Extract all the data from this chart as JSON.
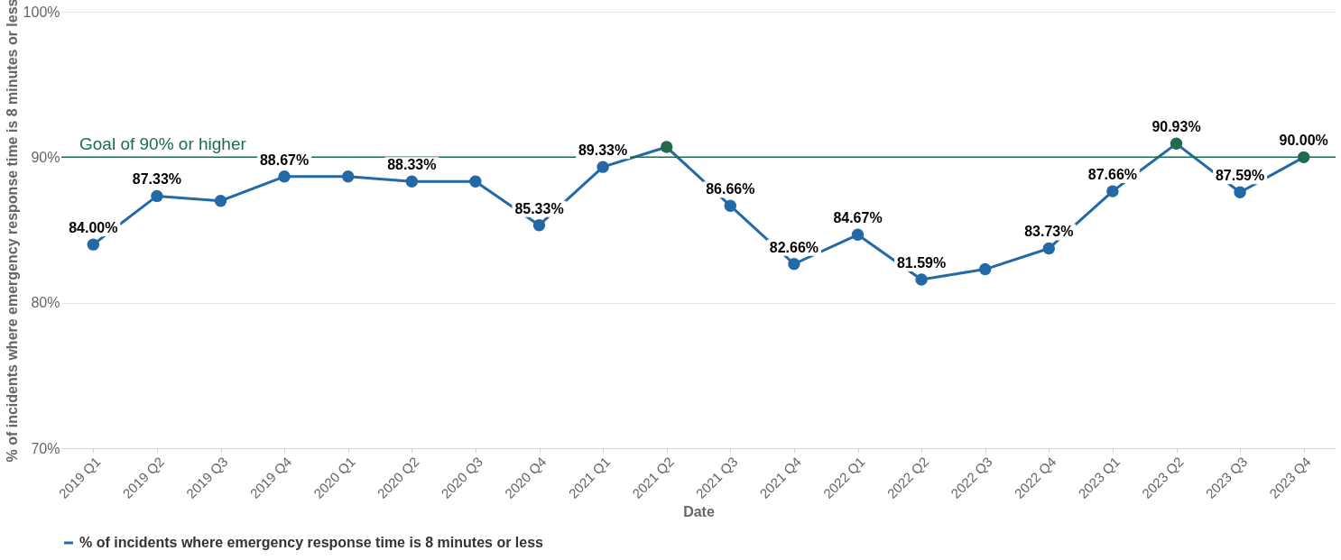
{
  "chart_data": {
    "type": "line",
    "xlabel": "Date",
    "ylabel": "% of incidents where emergency response time is 8 minutes or less",
    "categories": [
      "2019 Q1",
      "2019 Q2",
      "2019 Q3",
      "2019 Q4",
      "2020 Q1",
      "2020 Q2",
      "2020 Q3",
      "2020 Q4",
      "2021 Q1",
      "2021 Q2",
      "2021 Q3",
      "2021 Q4",
      "2022 Q1",
      "2022 Q2",
      "2022 Q3",
      "2022 Q4",
      "2023 Q1",
      "2023 Q2",
      "2023 Q3",
      "2023 Q4"
    ],
    "series": [
      {
        "name": "% of incidents where emergency response time is 8 minutes or less",
        "color": "#2369a5",
        "values": [
          84.0,
          87.33,
          87.0,
          88.67,
          88.67,
          88.33,
          88.33,
          85.33,
          89.33,
          90.7,
          86.66,
          82.66,
          84.67,
          81.59,
          82.3,
          83.73,
          87.66,
          90.93,
          87.59,
          90.0
        ],
        "colors": [
          "#2369a5",
          "#2369a5",
          "#2369a5",
          "#2369a5",
          "#2369a5",
          "#2369a5",
          "#2369a5",
          "#2369a5",
          "#2369a5",
          "#1f6b4c",
          "#2369a5",
          "#2369a5",
          "#2369a5",
          "#2369a5",
          "#2369a5",
          "#2369a5",
          "#2369a5",
          "#1f6b4c",
          "#2369a5",
          "#1f6b4c"
        ],
        "value_labels": [
          "84.00%",
          "87.33%",
          null,
          "88.67%",
          null,
          "88.33%",
          null,
          "85.33%",
          "89.33%",
          null,
          "86.66%",
          "82.66%",
          "84.67%",
          "81.59%",
          null,
          "83.73%",
          "87.66%",
          "90.93%",
          "87.59%",
          "90.00%"
        ]
      }
    ],
    "ylim": [
      70,
      100
    ],
    "yticks": [
      {
        "value": 70,
        "label": "70%"
      },
      {
        "value": 80,
        "label": "80%"
      },
      {
        "value": 90,
        "label": "90%"
      },
      {
        "value": 100,
        "label": "100%"
      }
    ],
    "ref_lines": [
      {
        "axis": "y",
        "value": 90,
        "label": "Goal of 90% or higher",
        "color": "#1f6b4c"
      }
    ],
    "grid": "y",
    "legend": "bottom",
    "marker": "circle",
    "line_style": "solid"
  }
}
